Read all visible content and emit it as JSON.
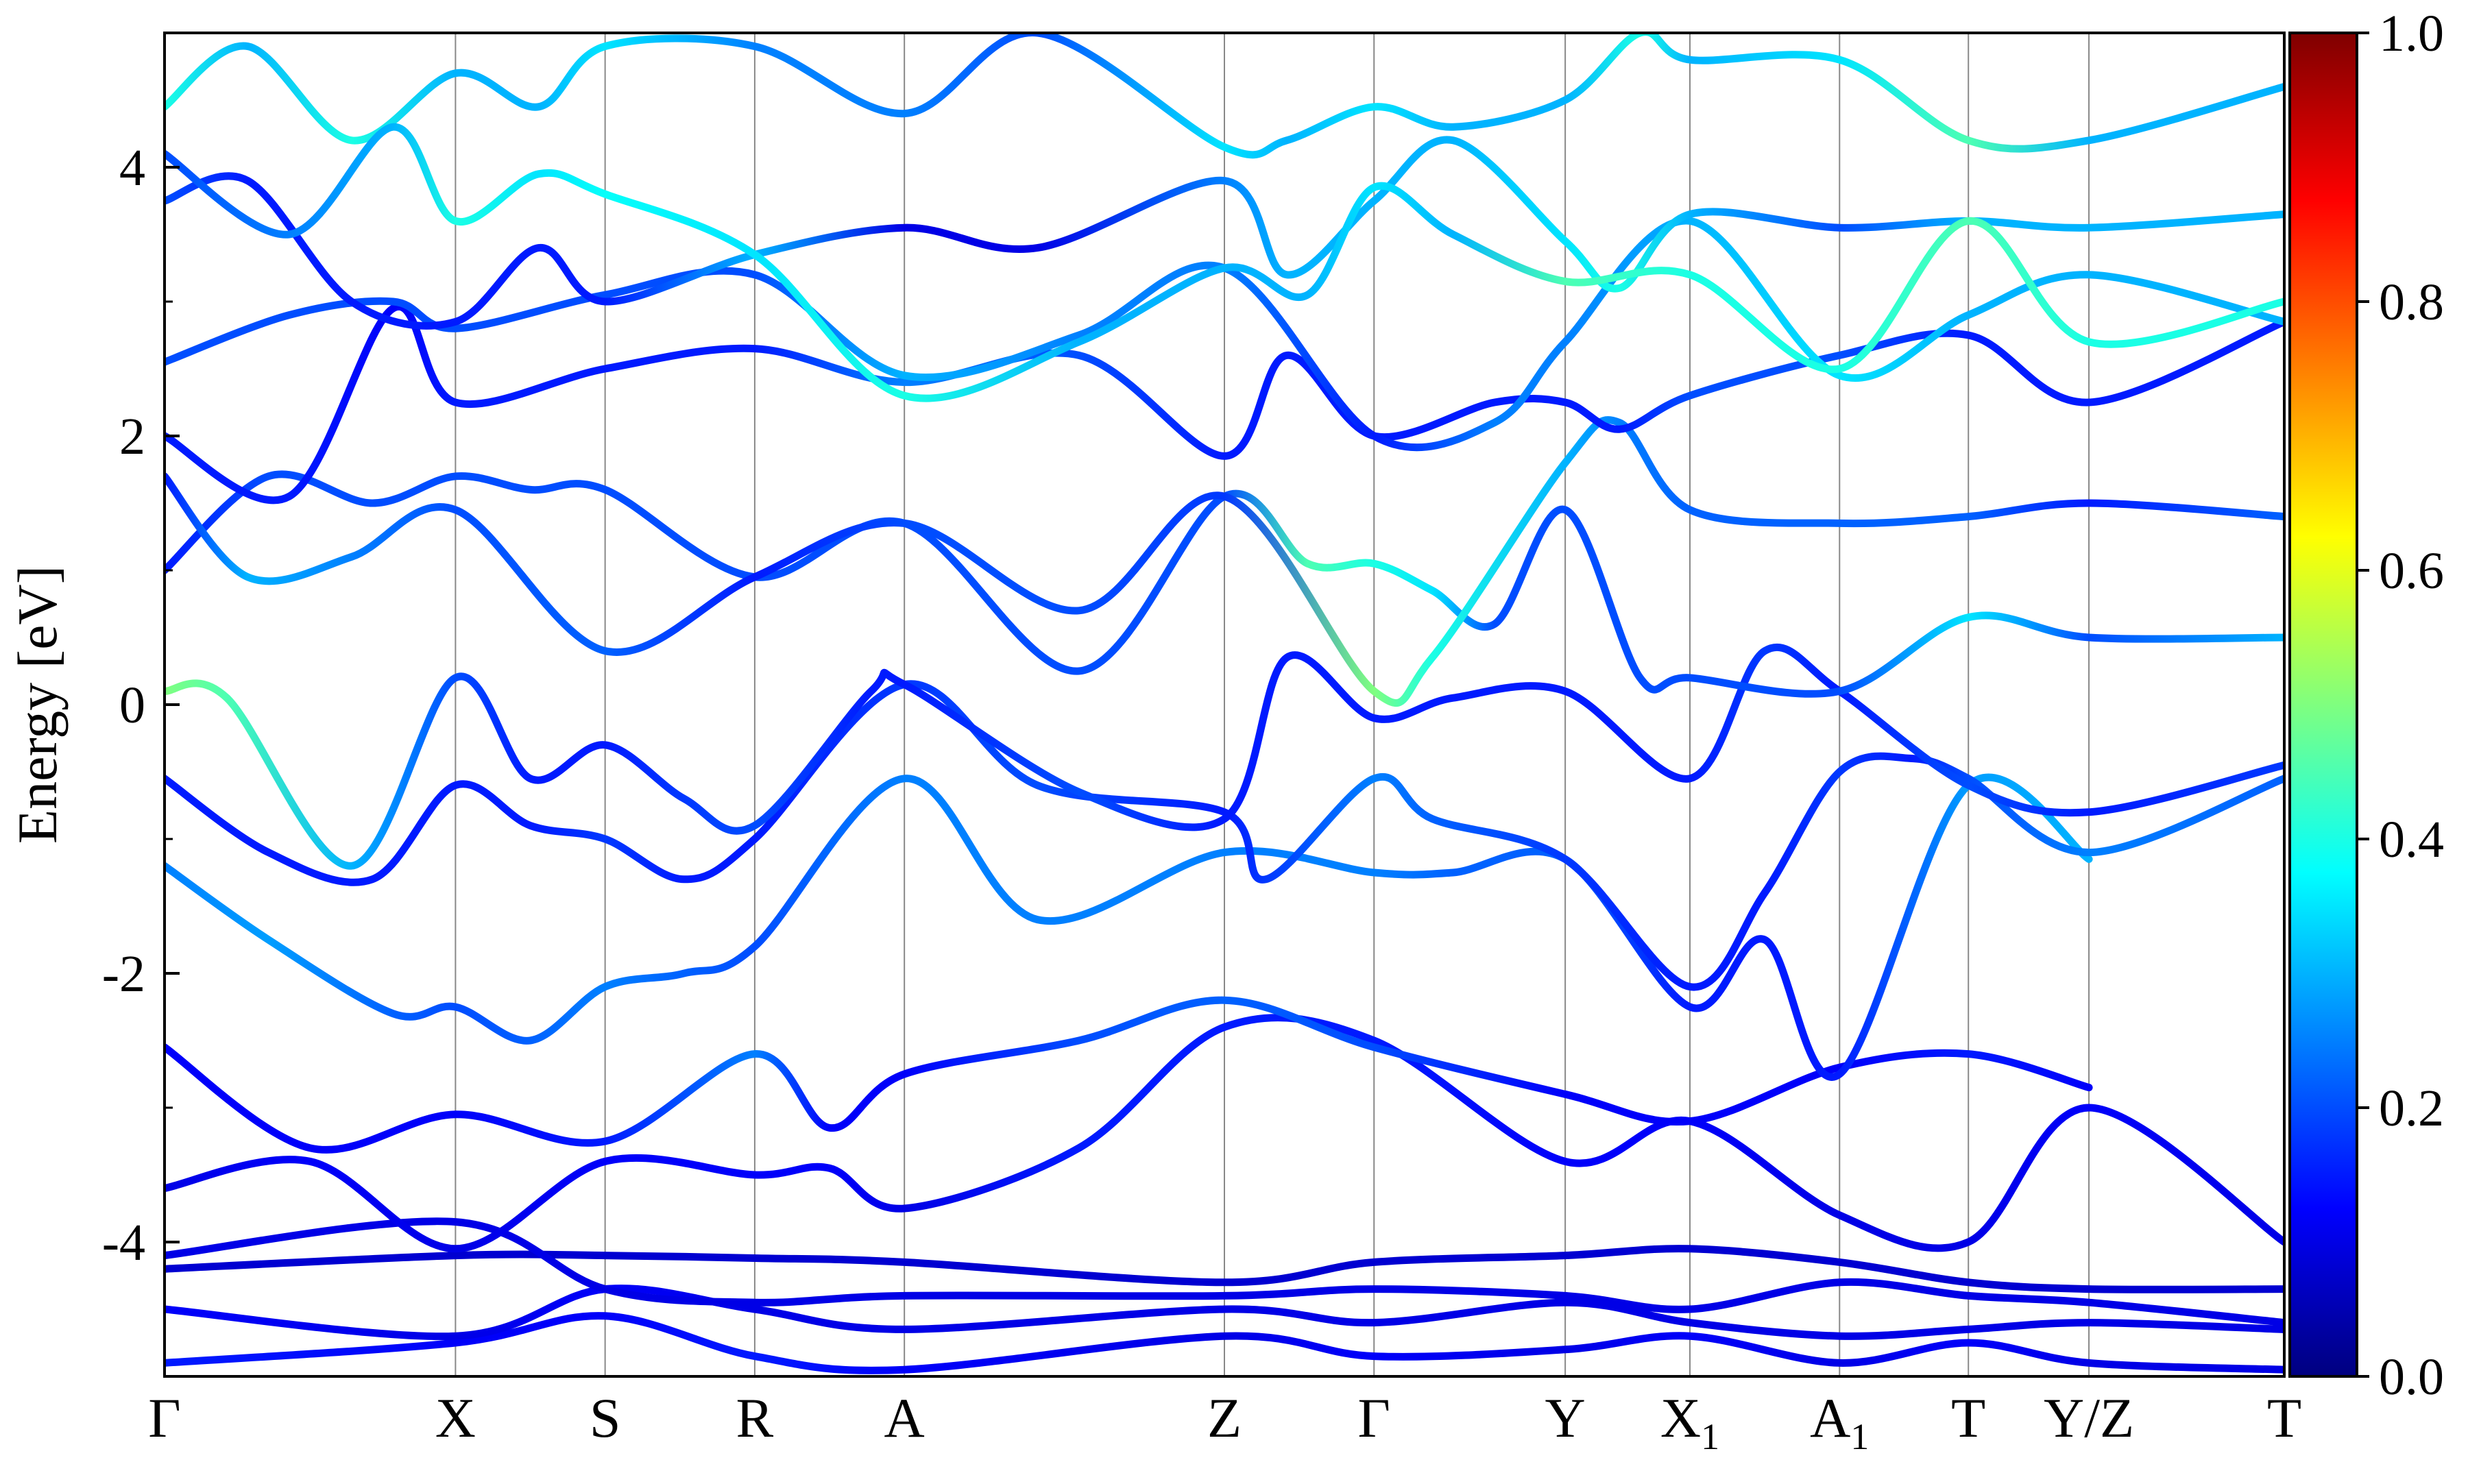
{
  "chart_data": {
    "type": "line",
    "title": "",
    "ylabel": "Energy [eV]",
    "xlabel": "",
    "ylim": [
      -5,
      5
    ],
    "yticks": [
      -4,
      -2,
      0,
      2,
      4
    ],
    "ytick_labels": [
      "-4",
      "-2",
      "0",
      "2",
      "4"
    ],
    "grid": false,
    "kpath": {
      "positions": [
        0.0,
        0.7,
        1.06,
        1.42,
        1.78,
        2.55,
        2.91,
        3.37,
        3.67,
        4.03,
        4.34,
        4.63,
        5.1
      ],
      "labels": [
        "Γ",
        "X",
        "S",
        "R",
        "A",
        "Z",
        "Γ",
        "Y",
        "X",
        "A",
        "T",
        "Y/Z",
        "T"
      ],
      "subscripts": [
        "",
        "",
        "",
        "",
        "",
        "",
        "",
        "",
        "1",
        "1",
        "",
        "",
        ""
      ]
    },
    "colorbar": {
      "min": 0.0,
      "max": 1.0,
      "ticks": [
        0.0,
        0.2,
        0.4,
        0.6,
        0.8,
        1.0
      ],
      "tick_labels": [
        "0.0",
        "0.2",
        "0.4",
        "0.6",
        "0.8",
        "1.0"
      ],
      "colormap": "jet"
    },
    "series": [
      {
        "x": [
          0,
          0.7,
          1.06,
          1.42,
          1.78,
          2.55,
          2.91,
          3.37,
          3.67,
          4.03,
          4.34,
          4.63,
          5.1
        ],
        "y": [
          -4.9,
          -4.75,
          -4.55,
          -4.85,
          -4.95,
          -4.7,
          -4.85,
          -4.8,
          -4.7,
          -4.9,
          -4.75,
          -4.9,
          -4.95
        ],
        "w": [
          0.15,
          0.12,
          0.12,
          0.15,
          0.12,
          0.1,
          0.12,
          0.1,
          0.12,
          0.1,
          0.12,
          0.1,
          0.1
        ]
      },
      {
        "x": [
          0,
          0.7,
          1.06,
          1.42,
          1.78,
          2.55,
          2.91,
          3.37,
          3.67,
          4.03,
          4.34,
          4.63,
          5.1
        ],
        "y": [
          -4.5,
          -4.7,
          -4.35,
          -4.5,
          -4.65,
          -4.5,
          -4.6,
          -4.45,
          -4.6,
          -4.7,
          -4.65,
          -4.6,
          -4.65
        ],
        "w": [
          0.12,
          0.1,
          0.12,
          0.1,
          0.1,
          0.1,
          0.1,
          0.1,
          0.1,
          0.1,
          0.1,
          0.1,
          0.1
        ]
      },
      {
        "x": [
          0,
          0.7,
          1.06,
          1.42,
          1.78,
          2.55,
          2.91,
          3.37,
          3.67,
          4.03,
          4.34,
          4.63,
          5.1
        ],
        "y": [
          -4.2,
          -4.1,
          -4.1,
          -4.12,
          -4.15,
          -4.3,
          -4.15,
          -4.1,
          -4.05,
          -4.15,
          -4.3,
          -4.35,
          -4.35
        ],
        "w": [
          0.08,
          0.08,
          0.08,
          0.08,
          0.08,
          0.08,
          0.08,
          0.08,
          0.08,
          0.08,
          0.08,
          0.08,
          0.08
        ]
      },
      {
        "x": [
          0,
          0.7,
          1.06,
          1.42,
          1.78,
          2.55,
          2.91,
          3.37,
          3.67,
          4.03,
          4.34,
          4.63,
          5.1
        ],
        "y": [
          -4.1,
          -3.85,
          -4.35,
          -4.45,
          -4.4,
          -4.4,
          -4.35,
          -4.4,
          -4.5,
          -4.3,
          -4.4,
          -4.45,
          -4.6
        ],
        "w": [
          0.1,
          0.1,
          0.1,
          0.1,
          0.1,
          0.1,
          0.1,
          0.1,
          0.1,
          0.1,
          0.1,
          0.1,
          0.1
        ]
      },
      {
        "x": [
          0,
          0.35,
          0.7,
          1.06,
          1.42,
          1.6,
          1.78,
          2.2,
          2.55,
          2.91,
          3.37,
          3.67,
          4.03,
          4.34,
          4.63,
          5.1
        ],
        "y": [
          -3.6,
          -3.4,
          -4.05,
          -3.4,
          -3.5,
          -3.45,
          -3.75,
          -3.3,
          -2.4,
          -2.5,
          -3.4,
          -3.1,
          -3.8,
          -4.0,
          -3.0,
          -4.0
        ],
        "w": [
          0.1,
          0.12,
          0.1,
          0.12,
          0.12,
          0.12,
          0.1,
          0.15,
          0.15,
          0.15,
          0.12,
          0.12,
          0.1,
          0.1,
          0.12,
          0.1
        ]
      },
      {
        "x": [
          0,
          0.35,
          0.7,
          1.06,
          1.42,
          1.6,
          1.78,
          2.2,
          2.55,
          2.91,
          3.37,
          3.67,
          4.03,
          4.34,
          4.63
        ],
        "y": [
          -2.55,
          -3.3,
          -3.05,
          -3.25,
          -2.6,
          -3.15,
          -2.75,
          -2.5,
          -2.2,
          -2.55,
          -2.9,
          -3.1,
          -2.7,
          -2.6,
          -2.85
        ],
        "w": [
          0.12,
          0.12,
          0.12,
          0.15,
          0.25,
          0.12,
          0.12,
          0.2,
          0.22,
          0.2,
          0.12,
          0.12,
          0.12,
          0.15,
          0.12
        ]
      },
      {
        "x": [
          0,
          0.25,
          0.55,
          0.7,
          0.88,
          1.06,
          1.25,
          1.42,
          1.78,
          2.1,
          2.55,
          2.91,
          3.1,
          3.37,
          3.67,
          3.85,
          4.03,
          4.34,
          4.63
        ],
        "y": [
          -1.2,
          -1.75,
          -2.3,
          -2.25,
          -2.5,
          -2.1,
          -2.0,
          -1.8,
          -0.55,
          -1.6,
          -1.1,
          -1.25,
          -1.25,
          -1.15,
          -2.25,
          -1.75,
          -2.75,
          -0.6,
          -1.15
        ],
        "w": [
          0.25,
          0.28,
          0.22,
          0.2,
          0.22,
          0.25,
          0.22,
          0.2,
          0.25,
          0.25,
          0.25,
          0.25,
          0.22,
          0.22,
          0.15,
          0.15,
          0.15,
          0.28,
          0.3
        ]
      },
      {
        "x": [
          0,
          0.25,
          0.5,
          0.7,
          0.88,
          1.06,
          1.25,
          1.42,
          1.78,
          2.1,
          2.55,
          2.65,
          2.91,
          3.05,
          3.37,
          3.67,
          3.85,
          4.03,
          4.2,
          4.34,
          4.63,
          5.1
        ],
        "y": [
          -0.55,
          -1.1,
          -1.3,
          -0.6,
          -0.9,
          -1.0,
          -1.3,
          -1.0,
          0.15,
          -0.6,
          -0.8,
          -1.3,
          -0.55,
          -0.85,
          -1.15,
          -2.1,
          -1.4,
          -0.5,
          -0.4,
          -0.55,
          -1.1,
          -0.55
        ],
        "w": [
          0.15,
          0.15,
          0.15,
          0.15,
          0.15,
          0.18,
          0.15,
          0.15,
          0.18,
          0.2,
          0.15,
          0.18,
          0.25,
          0.22,
          0.18,
          0.15,
          0.15,
          0.18,
          0.15,
          0.2,
          0.25,
          0.22
        ]
      },
      {
        "x": [
          0,
          0.15,
          0.45,
          0.7,
          0.88,
          1.06,
          1.25,
          1.42,
          1.7,
          1.78,
          2.2,
          2.55,
          2.7,
          2.91,
          3.1,
          3.37,
          3.67,
          3.85,
          4.03,
          4.34,
          4.63,
          5.1
        ],
        "y": [
          0.1,
          0.05,
          -1.2,
          0.2,
          -0.55,
          -0.3,
          -0.7,
          -0.9,
          0.1,
          0.15,
          -0.65,
          -0.85,
          0.35,
          -0.1,
          0.05,
          0.1,
          -0.55,
          0.4,
          0.1,
          -0.6,
          -0.8,
          -0.45
        ],
        "w": [
          0.5,
          0.45,
          0.3,
          0.2,
          0.15,
          0.15,
          0.18,
          0.2,
          0.15,
          0.15,
          0.2,
          0.15,
          0.15,
          0.15,
          0.15,
          0.15,
          0.15,
          0.18,
          0.15,
          0.2,
          0.15,
          0.18
        ]
      },
      {
        "x": [
          0,
          0.25,
          0.5,
          0.7,
          0.88,
          1.06,
          1.42,
          1.78,
          2.2,
          2.55,
          2.75,
          2.91,
          3.05,
          3.2,
          3.37,
          3.55,
          3.67,
          4.03,
          4.34,
          4.63,
          5.1
        ],
        "y": [
          1.0,
          1.7,
          1.5,
          1.7,
          1.6,
          1.6,
          0.95,
          1.35,
          0.25,
          1.55,
          1.05,
          1.05,
          0.85,
          0.6,
          1.45,
          0.2,
          0.2,
          0.1,
          0.65,
          0.5,
          0.5
        ],
        "w": [
          0.15,
          0.2,
          0.2,
          0.2,
          0.2,
          0.2,
          0.2,
          0.2,
          0.2,
          0.2,
          0.45,
          0.4,
          0.35,
          0.2,
          0.2,
          0.2,
          0.2,
          0.2,
          0.35,
          0.2,
          0.3
        ]
      },
      {
        "x": [
          0,
          0.2,
          0.45,
          0.7,
          1.06,
          1.42,
          1.78,
          2.2,
          2.55,
          2.91,
          3.05,
          3.37,
          3.5,
          3.67,
          4.03,
          4.34,
          4.63,
          5.1
        ],
        "y": [
          1.7,
          0.95,
          1.1,
          1.45,
          0.4,
          0.95,
          1.35,
          0.7,
          1.55,
          0.1,
          0.35,
          1.8,
          2.1,
          1.45,
          1.35,
          1.4,
          1.5,
          1.4
        ],
        "w": [
          0.15,
          0.3,
          0.25,
          0.2,
          0.22,
          0.15,
          0.2,
          0.2,
          0.18,
          0.5,
          0.4,
          0.3,
          0.25,
          0.22,
          0.22,
          0.22,
          0.15,
          0.22
        ]
      },
      {
        "x": [
          0,
          0.3,
          0.55,
          0.7,
          1.06,
          1.42,
          1.78,
          2.2,
          2.55,
          2.7,
          2.91,
          3.2,
          3.37,
          3.5,
          3.67,
          4.03,
          4.34,
          4.63,
          5.1
        ],
        "y": [
          2.0,
          1.55,
          2.95,
          2.25,
          2.5,
          2.65,
          2.4,
          2.6,
          1.85,
          2.6,
          2.0,
          2.25,
          2.25,
          2.05,
          2.3,
          2.6,
          2.75,
          2.25,
          2.85
        ],
        "w": [
          0.15,
          0.15,
          0.12,
          0.15,
          0.15,
          0.15,
          0.25,
          0.2,
          0.15,
          0.15,
          0.15,
          0.15,
          0.15,
          0.15,
          0.2,
          0.2,
          0.15,
          0.15,
          0.15
        ]
      },
      {
        "x": [
          0,
          0.3,
          0.55,
          0.7,
          1.06,
          1.42,
          1.78,
          2.2,
          2.55,
          2.91,
          3.2,
          3.37,
          3.67,
          4.03,
          4.34,
          4.63,
          5.1
        ],
        "y": [
          2.55,
          2.9,
          3.0,
          2.8,
          3.05,
          3.2,
          2.45,
          2.75,
          3.25,
          2.0,
          2.1,
          2.7,
          3.6,
          2.45,
          2.9,
          3.2,
          2.85
        ],
        "w": [
          0.2,
          0.2,
          0.2,
          0.2,
          0.2,
          0.2,
          0.3,
          0.25,
          0.25,
          0.15,
          0.25,
          0.25,
          0.3,
          0.35,
          0.3,
          0.3,
          0.3
        ]
      },
      {
        "x": [
          0,
          0.2,
          0.45,
          0.7,
          0.9,
          1.06,
          1.42,
          1.78,
          2.1,
          2.55,
          2.7,
          2.91,
          3.1,
          3.37,
          3.5,
          3.67,
          4.03,
          4.34,
          4.63,
          5.1
        ],
        "y": [
          3.75,
          3.9,
          3.0,
          2.85,
          3.4,
          3.0,
          3.35,
          3.55,
          3.4,
          3.9,
          3.2,
          3.75,
          4.2,
          3.45,
          3.1,
          3.65,
          3.55,
          3.6,
          3.55,
          3.65
        ],
        "w": [
          0.2,
          0.15,
          0.15,
          0.15,
          0.15,
          0.15,
          0.3,
          0.1,
          0.1,
          0.25,
          0.3,
          0.3,
          0.3,
          0.35,
          0.4,
          0.3,
          0.2,
          0.3,
          0.3,
          0.3
        ]
      },
      {
        "x": [
          0,
          0.2,
          0.45,
          0.7,
          0.9,
          1.06,
          1.42,
          1.78,
          2.1,
          2.55,
          2.7,
          2.91,
          3.1,
          3.37,
          3.55,
          3.67,
          4.03,
          4.34,
          4.63,
          5.1
        ],
        "y": [
          4.45,
          4.9,
          4.2,
          4.7,
          4.45,
          4.9,
          4.9,
          4.4,
          5.0,
          4.15,
          4.2,
          4.45,
          4.3,
          4.5,
          5.0,
          4.8,
          4.8,
          4.2,
          4.2,
          4.6
        ],
        "w": [
          0.4,
          0.3,
          0.4,
          0.3,
          0.3,
          0.35,
          0.25,
          0.25,
          0.2,
          0.35,
          0.3,
          0.35,
          0.3,
          0.3,
          0.4,
          0.3,
          0.35,
          0.45,
          0.3,
          0.3
        ]
      },
      {
        "x": [
          0,
          0.3,
          0.55,
          0.7,
          0.9,
          1.06,
          1.42,
          1.78,
          2.2,
          2.55,
          2.75,
          2.91,
          3.1,
          3.37,
          3.67,
          4.03,
          4.34,
          4.63,
          5.1
        ],
        "y": [
          4.1,
          3.5,
          4.3,
          3.6,
          3.95,
          3.8,
          3.35,
          2.3,
          2.7,
          3.25,
          3.05,
          3.85,
          3.5,
          3.15,
          3.2,
          2.5,
          3.6,
          2.7,
          3.0
        ],
        "w": [
          0.2,
          0.25,
          0.3,
          0.4,
          0.35,
          0.38,
          0.35,
          0.4,
          0.3,
          0.3,
          0.3,
          0.35,
          0.3,
          0.45,
          0.4,
          0.4,
          0.45,
          0.4,
          0.4
        ]
      }
    ]
  }
}
